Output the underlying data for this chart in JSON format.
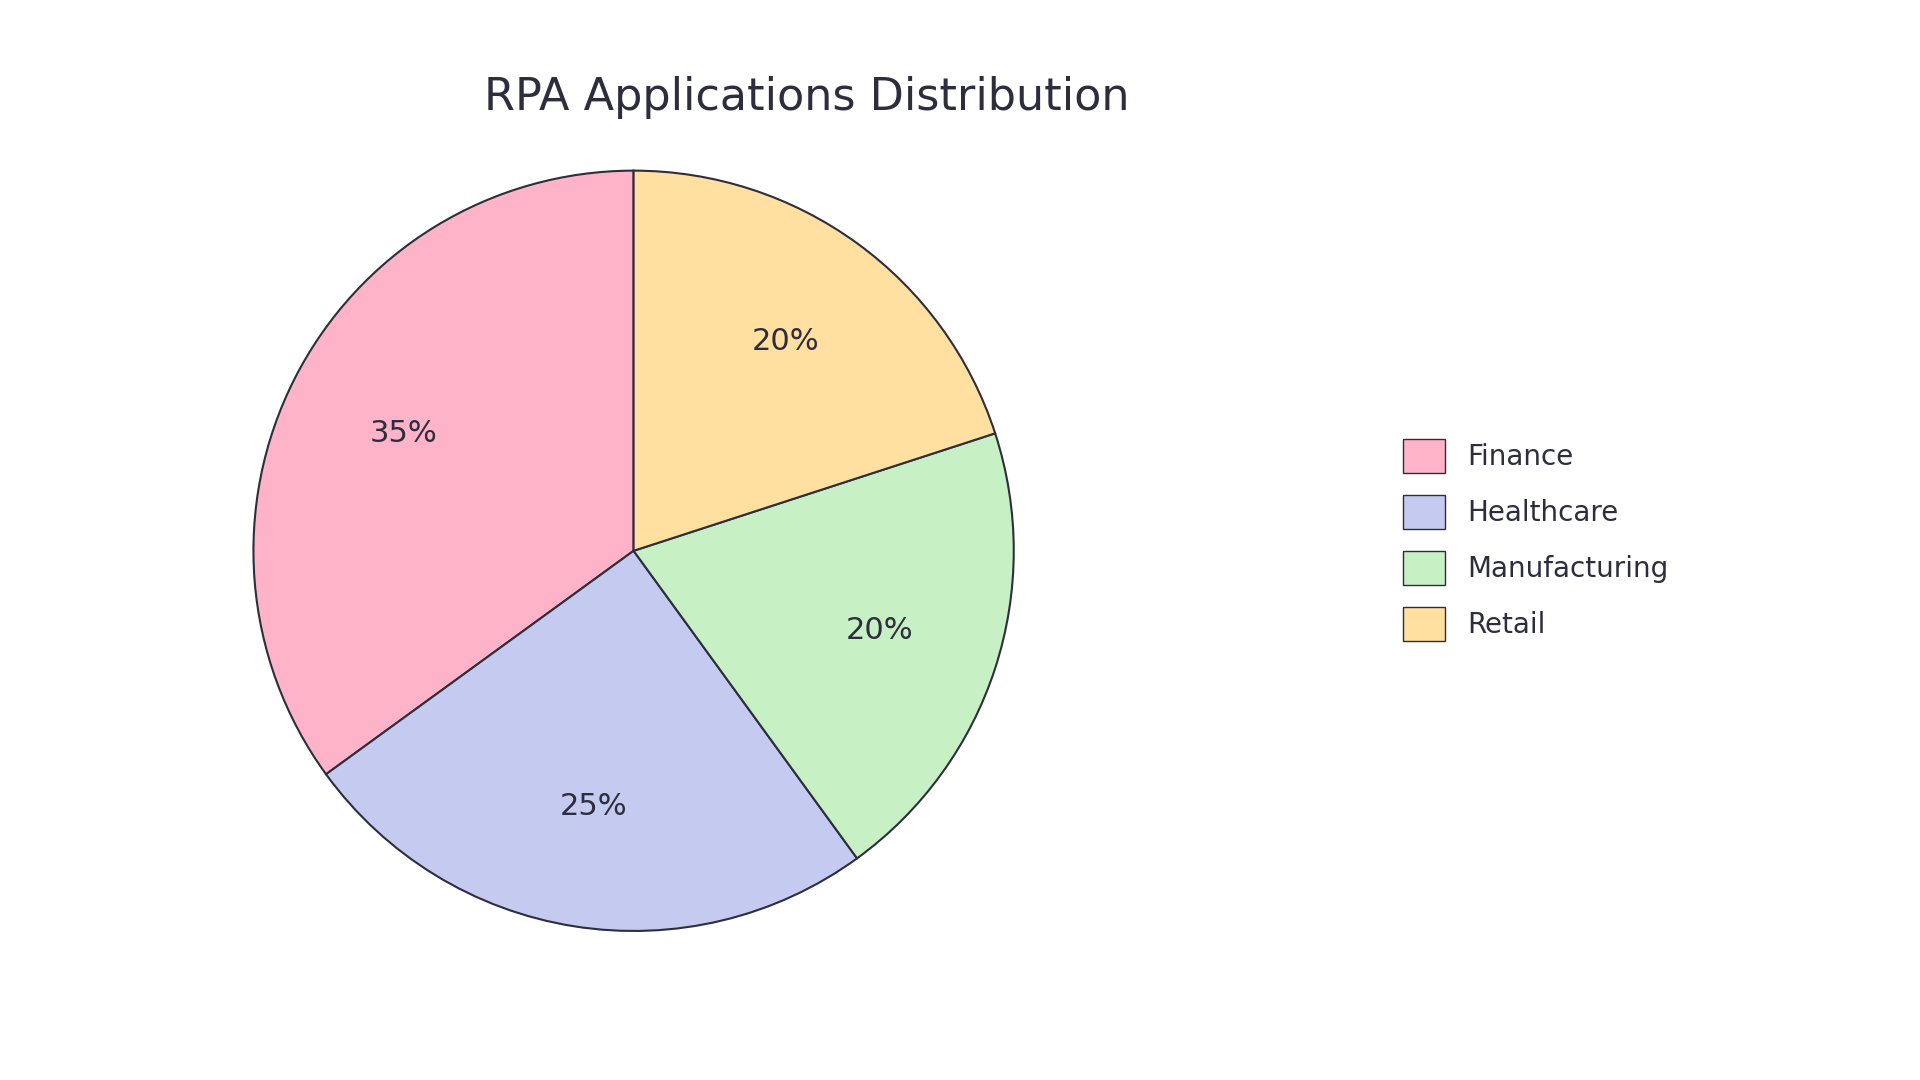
{
  "title": "RPA Applications Distribution",
  "labels": [
    "Finance",
    "Healthcare",
    "Manufacturing",
    "Retail"
  ],
  "values": [
    35,
    25,
    20,
    20
  ],
  "colors": [
    "#FFB3C8",
    "#C5CAF0",
    "#C8F0C5",
    "#FFE0A0"
  ],
  "edge_color": "#2d2d3d",
  "edge_width": 1.5,
  "autopct_fontsize": 22,
  "title_fontsize": 32,
  "title_color": "#2d2d3d",
  "text_color": "#2d2d3d",
  "legend_fontsize": 20,
  "startangle": 90,
  "background_color": "#ffffff",
  "pctdistance": 0.68
}
